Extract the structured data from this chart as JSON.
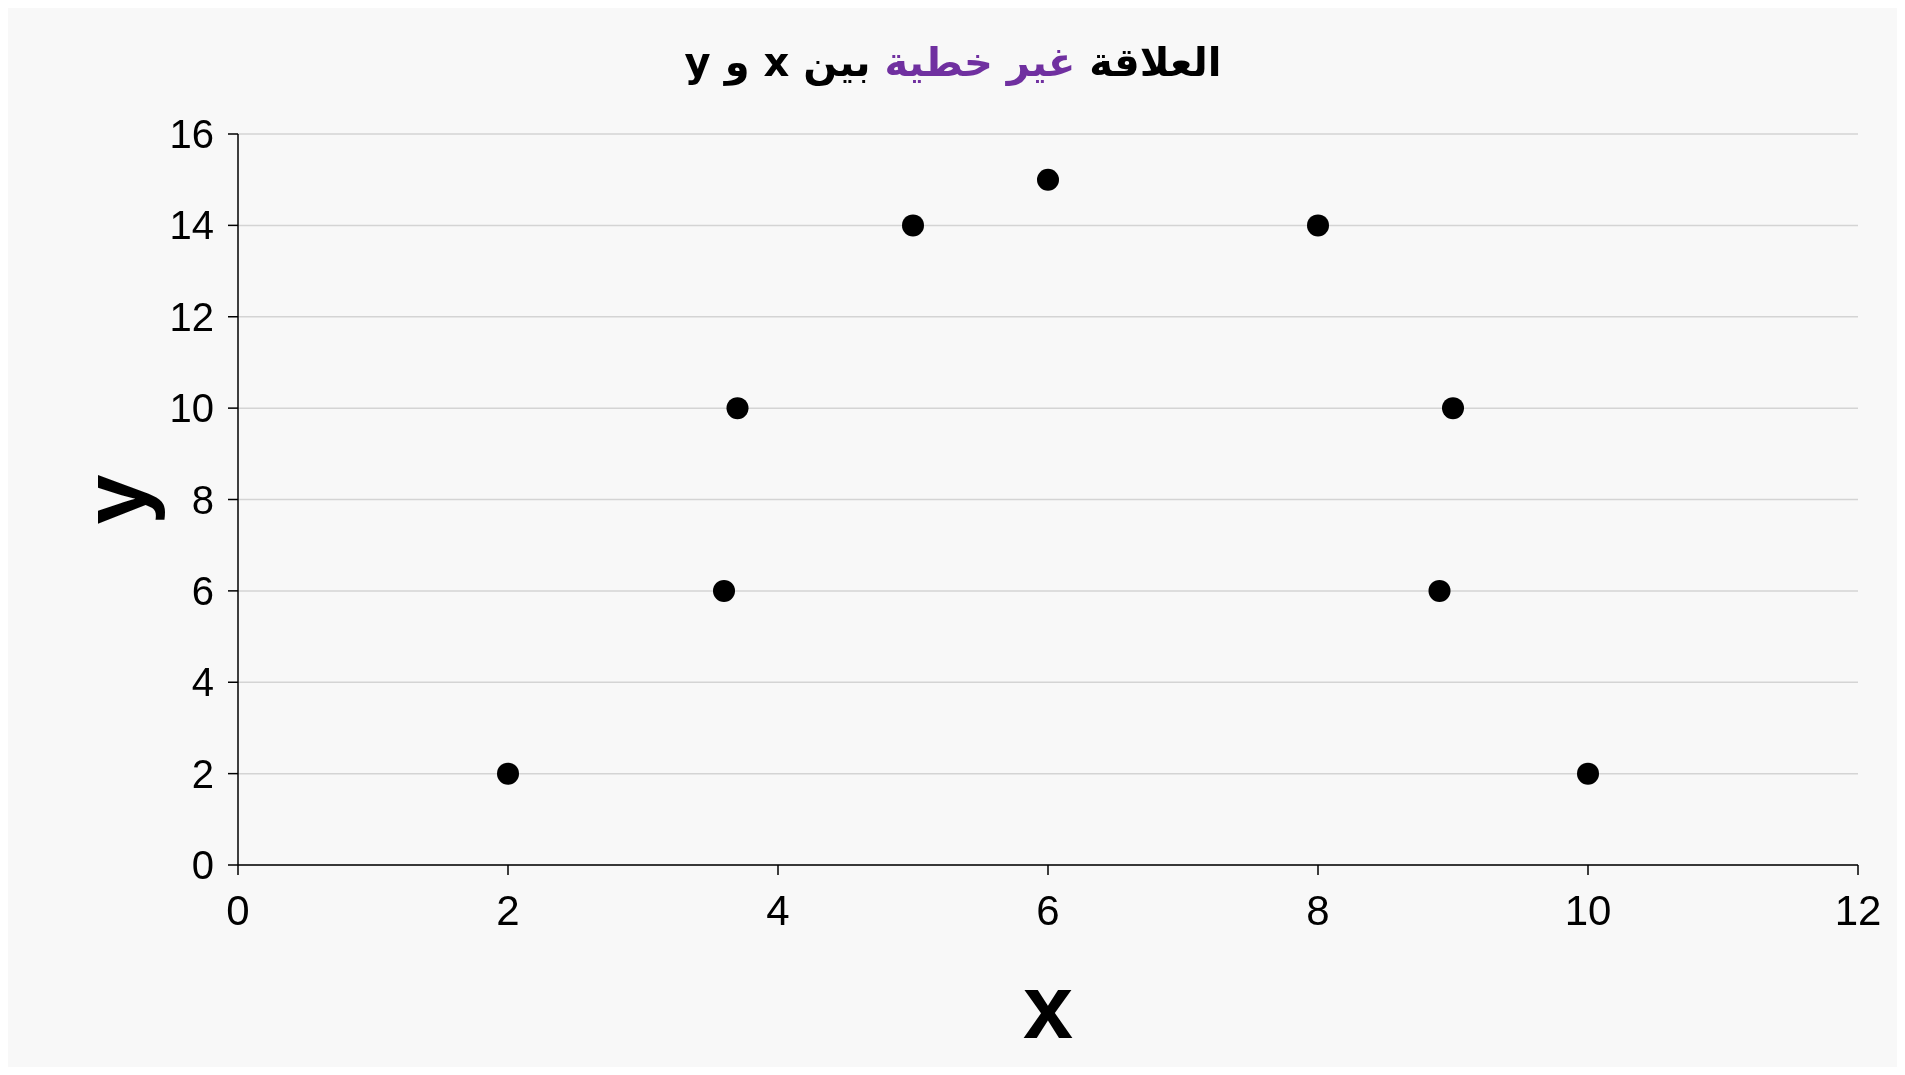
{
  "chart_data": {
    "type": "scatter",
    "title": "العلاقة غير خطية بين x و y",
    "xlabel": "x",
    "ylabel": "y",
    "series": [
      {
        "color": "#000000",
        "x": [
          2,
          3.6,
          3.7,
          5,
          6,
          8,
          8.9,
          9,
          10
        ],
        "values": [
          2,
          6,
          10,
          14,
          15,
          14,
          6,
          10,
          2
        ]
      }
    ],
    "xlim": [
      0,
      12
    ],
    "xticks": [
      0,
      2,
      4,
      6,
      8,
      10,
      12
    ],
    "ylim": [
      0,
      16
    ],
    "yticks": [
      0,
      2,
      4,
      6,
      8,
      10,
      12,
      14,
      16
    ],
    "grid": "y",
    "marker": "circle"
  }
}
